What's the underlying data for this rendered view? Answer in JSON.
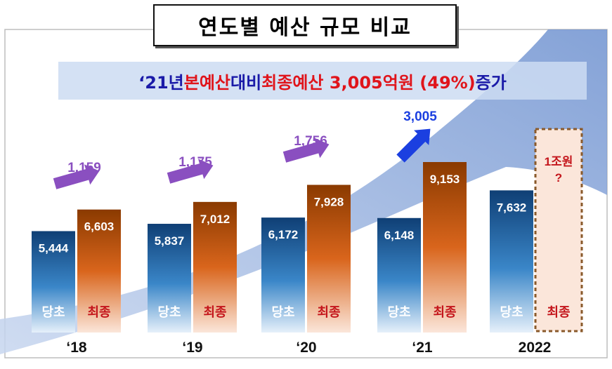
{
  "title": "연도별 예산 규모 비교",
  "headline": {
    "part1": "‘21년 ",
    "part2": "본예산",
    "part3": " 대비 ",
    "part4": "최종예산 3,005억원 (49%)",
    "part5": " 증가"
  },
  "labels": {
    "initial": "당초",
    "final": "최종"
  },
  "colors": {
    "initial_top": "#0f3f75",
    "initial_bottom": "#e6f0fa",
    "final_top": "#8a3a00",
    "final_bottom": "#fbe6da",
    "final_label": "#c4161c",
    "arrow_purple": "#8a4fc0",
    "arrow_blue": "#1b3fe0",
    "swoosh": "#7f9fd6"
  },
  "chart_data": {
    "type": "bar",
    "categories": [
      "‘18",
      "‘19",
      "‘20",
      "‘21",
      "2022"
    ],
    "series": [
      {
        "name": "당초",
        "values": [
          5444,
          5837,
          6172,
          6148,
          7632
        ],
        "labels": [
          "5,444",
          "5,837",
          "6,172",
          "6,148",
          "7,632"
        ]
      },
      {
        "name": "최종",
        "values": [
          6603,
          7012,
          7928,
          9153,
          null
        ],
        "labels": [
          "6,603",
          "7,012",
          "7,928",
          "9,153",
          "1조원\n?"
        ]
      }
    ],
    "increase": {
      "values": [
        1159,
        1175,
        1756,
        3005
      ],
      "labels": [
        "1,159",
        "1,175",
        "1,756",
        "3,005"
      ]
    }
  }
}
